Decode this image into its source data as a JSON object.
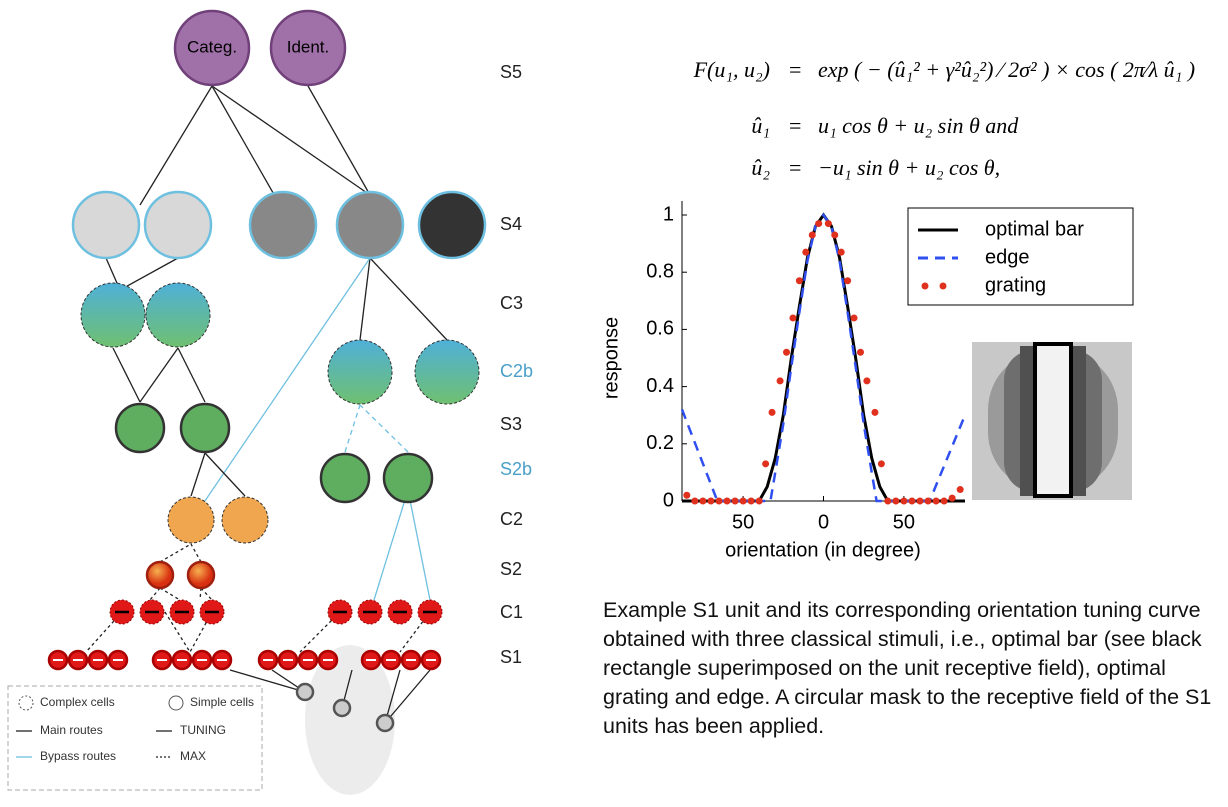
{
  "diagram": {
    "layer_labels": [
      "S5",
      "S4",
      "C3",
      "C2b",
      "S3",
      "S2b",
      "C2",
      "S2",
      "C1",
      "S1"
    ],
    "top_nodes": [
      "Categ.",
      "Ident."
    ],
    "legend": [
      "Complex cells",
      "Simple cells",
      "Main routes",
      "TUNING",
      "Bypass routes",
      "MAX"
    ]
  },
  "equations": [
    {
      "lhs": "F(u₁, u₂)",
      "op": "=",
      "rhs": "exp ( − (û₁² + γ²û₂²) ⁄ 2σ² ) × cos ( 2π⁄λ û₁ )"
    },
    {
      "lhs": "û₁",
      "op": "=",
      "rhs": "u₁ cos θ + u₂ sin θ    and"
    },
    {
      "lhs": "û₂",
      "op": "=",
      "rhs": "−u₁ sin θ + u₂ cos θ,"
    }
  ],
  "chart_data": {
    "type": "line",
    "xlabel": "orientation (in degree)",
    "ylabel": "response",
    "xlim": [
      -88,
      88
    ],
    "ylim": [
      0,
      1
    ],
    "xticks": [
      {
        "value": -50,
        "label": "50"
      },
      0,
      50
    ],
    "yticks": [
      0,
      0.2,
      0.4,
      0.6,
      0.8,
      1
    ],
    "legend": "upper right",
    "series": [
      {
        "name": "optimal bar",
        "color": "#000000",
        "style": "solid",
        "x": [
          -88,
          -40,
          -35,
          -30,
          -25,
          -20,
          -15,
          -10,
          -5,
          0,
          5,
          10,
          15,
          20,
          25,
          30,
          35,
          40,
          88
        ],
        "values": [
          0,
          0,
          0.05,
          0.15,
          0.3,
          0.5,
          0.68,
          0.85,
          0.96,
          1,
          0.96,
          0.85,
          0.68,
          0.5,
          0.3,
          0.15,
          0.05,
          0,
          0
        ]
      },
      {
        "name": "edge",
        "color": "#2f4ff0",
        "style": "dashed",
        "x": [
          -88,
          -66,
          -33,
          -30,
          -25,
          -20,
          -15,
          -10,
          -5,
          0,
          5,
          10,
          15,
          20,
          25,
          30,
          33,
          66,
          88
        ],
        "values": [
          0.32,
          0,
          0,
          0.1,
          0.27,
          0.47,
          0.66,
          0.84,
          0.96,
          1,
          0.96,
          0.84,
          0.66,
          0.47,
          0.27,
          0.1,
          0,
          0,
          0.3
        ]
      },
      {
        "name": "grating",
        "color": "#e0301e",
        "style": "dots",
        "x": [
          -85,
          -80,
          -75,
          -70,
          -65,
          -60,
          -55,
          -50,
          -45,
          -40,
          -36,
          -32,
          -27,
          -23,
          -19,
          -15,
          -11,
          -7,
          -3,
          3,
          7,
          11,
          15,
          19,
          23,
          27,
          32,
          36,
          40,
          45,
          50,
          55,
          60,
          65,
          70,
          75,
          80,
          85
        ],
        "values": [
          0.02,
          0,
          0,
          0,
          0,
          0,
          0,
          0,
          0,
          0,
          0.13,
          0.31,
          0.42,
          0.52,
          0.64,
          0.77,
          0.87,
          0.93,
          0.97,
          0.97,
          0.93,
          0.87,
          0.77,
          0.64,
          0.52,
          0.42,
          0.31,
          0.13,
          0,
          0,
          0,
          0,
          0,
          0,
          0,
          0,
          0.01,
          0.04
        ]
      }
    ]
  },
  "caption": "Example S1 unit and its corresponding orientation tuning curve obtained with three classical stimuli, i.e., optimal bar (see black rectangle superimposed on the unit receptive field), optimal grating and edge. A circular mask to the receptive field of the S1 units has been applied."
}
